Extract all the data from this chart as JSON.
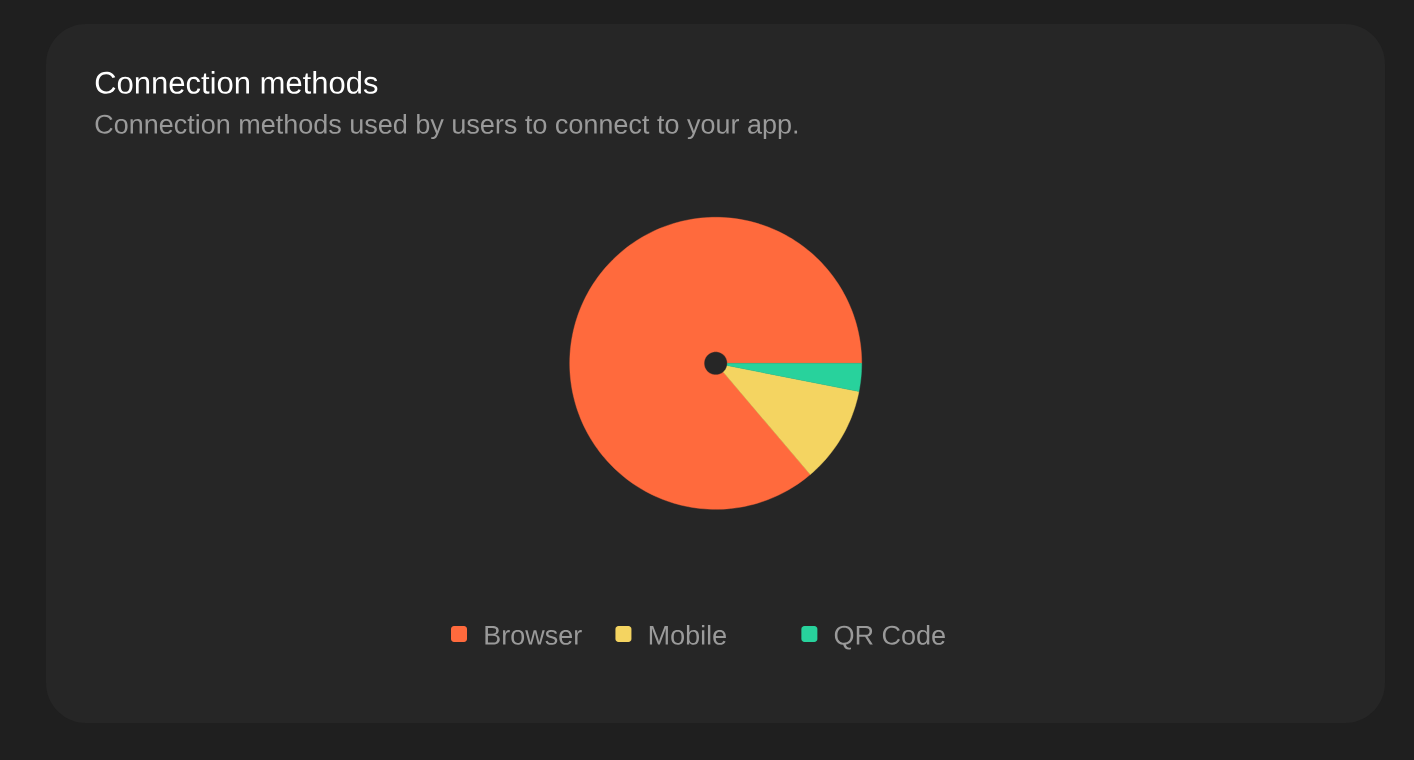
{
  "chart_data": {
    "type": "pie",
    "title": "Connection methods",
    "subtitle": "Connection methods used by users to connect to your app.",
    "categories": [
      "Browser",
      "Mobile",
      "QR Code"
    ],
    "values": [
      86.2,
      10.7,
      3.1
    ],
    "colors": [
      "#ff6a3d",
      "#f4d461",
      "#28d29c"
    ],
    "legend": "bottom"
  }
}
